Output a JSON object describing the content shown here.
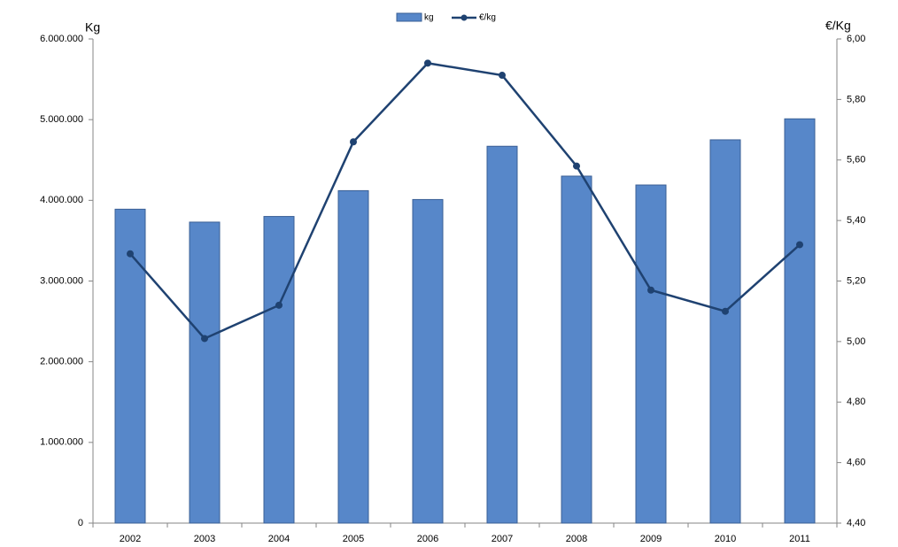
{
  "chart_data": {
    "type": "bar_line",
    "y_label": "Kg",
    "y2_label": "€/Kg",
    "categories": [
      "2002",
      "2003",
      "2004",
      "2005",
      "2006",
      "2007",
      "2008",
      "2009",
      "2010",
      "2011"
    ],
    "series": [
      {
        "name": "kg",
        "type": "bar",
        "color": "#5787c9",
        "values": [
          3890000,
          3730000,
          3800000,
          4120000,
          4010000,
          4670000,
          4300000,
          4190000,
          4750000,
          5010000
        ]
      },
      {
        "name": "€/kg",
        "type": "line",
        "axis": "y2",
        "color": "#1f4271",
        "values": [
          5.29,
          5.01,
          5.12,
          5.66,
          5.92,
          5.88,
          5.58,
          5.17,
          5.1,
          5.32
        ]
      }
    ],
    "ylim": [
      0,
      6000000
    ],
    "yticks": [
      0,
      {
        "value": 1000000,
        "label": "1.000.000"
      },
      {
        "value": 2000000,
        "label": "2.000.000"
      },
      {
        "value": 3000000,
        "label": "3.000.000"
      },
      {
        "value": 4000000,
        "label": "4.000.000"
      },
      {
        "value": 5000000,
        "label": "5.000.000"
      },
      {
        "value": 6000000,
        "label": "6.000.000"
      }
    ],
    "y2lim": [
      4.4,
      6.0
    ],
    "y2ticks": [
      {
        "value": 4.4,
        "label": "4,40"
      },
      {
        "value": 4.6,
        "label": "4,60"
      },
      {
        "value": 4.8,
        "label": "4,80"
      },
      {
        "value": 5.0,
        "label": "5,00"
      },
      {
        "value": 5.2,
        "label": "5,20"
      },
      {
        "value": 5.4,
        "label": "5,40"
      },
      {
        "value": 5.6,
        "label": "5,60"
      },
      {
        "value": 5.8,
        "label": "5,80"
      },
      {
        "value": 6.0,
        "label": "6,00"
      }
    ],
    "legend": "top"
  }
}
